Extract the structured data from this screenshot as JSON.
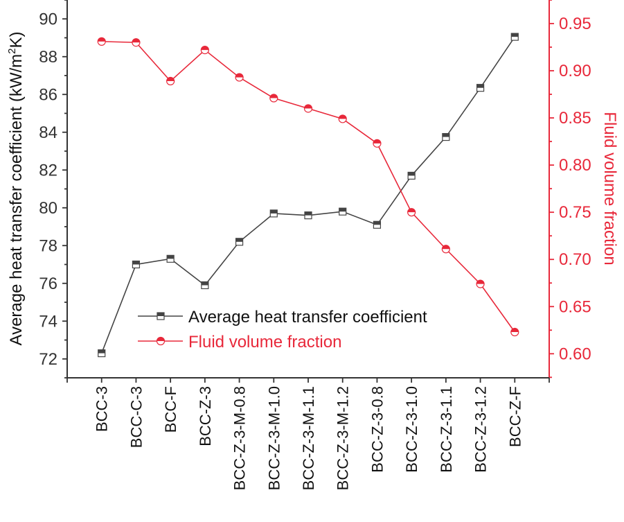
{
  "chart_data": {
    "type": "line",
    "categories": [
      "BCC-3",
      "BCC-C-3",
      "BCC-F",
      "BCC-Z-3",
      "BCC-Z-3-M-0.8",
      "BCC-Z-3-M-1.0",
      "BCC-Z-3-M-1.1",
      "BCC-Z-3-M-1.2",
      "BCC-Z-3-0.8",
      "BCC-Z-3-1.0",
      "BCC-Z-3-1.1",
      "BCC-Z-3-1.2",
      "BCC-Z-F"
    ],
    "series": [
      {
        "name": "Average heat transfer coefficient",
        "axis": "left",
        "color": "#444444",
        "marker": "half-filled-square",
        "values": [
          72.3,
          77.0,
          77.3,
          75.9,
          78.2,
          79.7,
          79.6,
          79.8,
          79.1,
          81.7,
          83.75,
          86.35,
          89.05
        ]
      },
      {
        "name": "Fluid volume fraction",
        "axis": "right",
        "color": "#e8283a",
        "marker": "half-filled-circle",
        "values": [
          0.931,
          0.93,
          0.889,
          0.922,
          0.893,
          0.871,
          0.86,
          0.849,
          0.823,
          0.75,
          0.711,
          0.674,
          0.623
        ]
      }
    ],
    "left_axis": {
      "label_prefix": "Average heat transfer coefficient (kW/m",
      "label_sup": "2",
      "label_suffix": "K)",
      "ylim": [
        71,
        91
      ],
      "ticks": [
        "72",
        "74",
        "76",
        "78",
        "80",
        "82",
        "84",
        "86",
        "88",
        "90"
      ],
      "color": "#333333"
    },
    "right_axis": {
      "label": "Fluid volume fraction",
      "ylim": [
        0.5745,
        0.975
      ],
      "ticks": [
        "0.60",
        "0.65",
        "0.70",
        "0.75",
        "0.80",
        "0.85",
        "0.90",
        "0.95"
      ],
      "color": "#e8283a"
    },
    "legend": {
      "position": "lower-left",
      "entries": [
        "Average heat transfer coefficient",
        "Fluid volume fraction"
      ]
    }
  }
}
